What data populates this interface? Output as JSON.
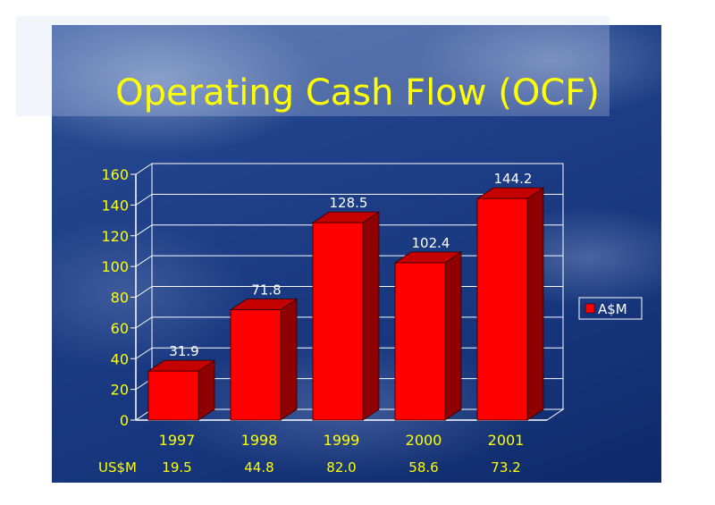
{
  "chart_data": {
    "type": "bar",
    "title": "Operating Cash Flow (OCF)",
    "categories": [
      "1997",
      "1998",
      "1999",
      "2000",
      "2001"
    ],
    "series": [
      {
        "name": "A$M",
        "values": [
          31.9,
          71.8,
          128.5,
          102.4,
          144.2
        ]
      }
    ],
    "data_labels": [
      "31.9",
      "71.8",
      "128.5",
      "102.4",
      "144.2"
    ],
    "ylim": [
      0,
      160
    ],
    "yticks": [
      "0",
      "20",
      "40",
      "60",
      "80",
      "100",
      "120",
      "140",
      "160"
    ],
    "grid": true,
    "legend_position": "right",
    "bar_color": "#ff0000",
    "text_color": "#ffff00",
    "secondary_row": {
      "label": "US$M",
      "values": [
        "19.5",
        "44.8",
        "82.0",
        "58.6",
        "73.2"
      ]
    }
  }
}
